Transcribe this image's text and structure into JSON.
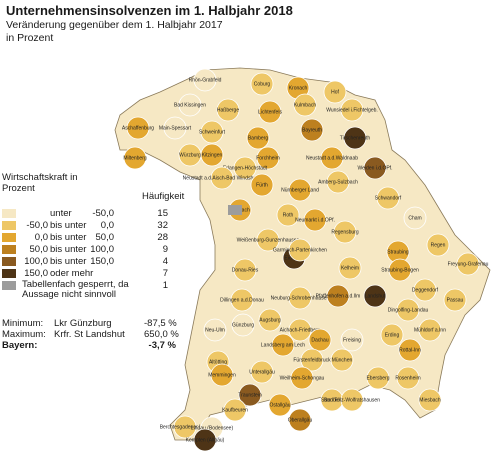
{
  "title": "Unternehmensinsolvenzen im 1. Halbjahr 2018",
  "subtitle": "Veränderung gegenüber dem 1. Halbjahr 2017",
  "unit": "in Prozent",
  "legend": {
    "title": "Wirtschaftskraft in Prozent",
    "count_title": "Häufigkeit",
    "items": [
      {
        "from": "",
        "mid": "unter",
        "to": "-50,0",
        "count": "15",
        "color": "#f6e8c4"
      },
      {
        "from": "-50,0",
        "mid": "bis unter",
        "to": "0,0",
        "count": "32",
        "color": "#eec766"
      },
      {
        "from": "0,0",
        "mid": "bis unter",
        "to": "50,0",
        "count": "28",
        "color": "#e3a730"
      },
      {
        "from": "50,0",
        "mid": "bis unter",
        "to": "100,0",
        "count": "9",
        "color": "#bd801f"
      },
      {
        "from": "100,0",
        "mid": "bis unter",
        "to": "150,0",
        "count": "4",
        "color": "#8a5a20"
      },
      {
        "from": "150,0",
        "mid": "oder mehr",
        "to": "",
        "count": "7",
        "color": "#4e3416"
      }
    ],
    "note": {
      "text": "Tabellenfach gesperrt, da Aussage nicht sinnvoll",
      "count": "1",
      "color": "#9c9c9c"
    }
  },
  "stats": [
    {
      "key": "Minimum:",
      "place": "Lkr Günzburg",
      "value": "-87,5 %",
      "bold": false
    },
    {
      "key": "Maximum:",
      "place": "Krfr. St Landshut",
      "value": "650,0 %",
      "bold": false
    },
    {
      "key": "Bayern:",
      "place": "",
      "value": "-3,7 %",
      "bold": true
    }
  ],
  "regions": [
    {
      "name": "Rhön-Grabfeld",
      "cls": 0
    },
    {
      "name": "Coburg",
      "cls": 1
    },
    {
      "name": "Kronach",
      "cls": 2
    },
    {
      "name": "Hof",
      "cls": 1
    },
    {
      "name": "Bad Kissingen",
      "cls": 0
    },
    {
      "name": "Haßberge",
      "cls": 1
    },
    {
      "name": "Lichtenfels",
      "cls": 2
    },
    {
      "name": "Kulmbach",
      "cls": 1
    },
    {
      "name": "Wunsiedel i.Fichtelgeb.",
      "cls": 1
    },
    {
      "name": "Aschaffenburg",
      "cls": 2
    },
    {
      "name": "Main-Spessart",
      "cls": 0
    },
    {
      "name": "Schweinfurt",
      "cls": 1
    },
    {
      "name": "Bamberg",
      "cls": 2
    },
    {
      "name": "Bayreuth",
      "cls": 3
    },
    {
      "name": "Tirschenreuth",
      "cls": 5
    },
    {
      "name": "Miltenberg",
      "cls": 2
    },
    {
      "name": "Würzburg",
      "cls": 1
    },
    {
      "name": "Kitzingen",
      "cls": 2
    },
    {
      "name": "Forchheim",
      "cls": 2
    },
    {
      "name": "Neustadt a.d.Waldnaab",
      "cls": 2
    },
    {
      "name": "Weiden i.d.OPf.",
      "cls": 4
    },
    {
      "name": "Erlangen-Höchstadt",
      "cls": 1
    },
    {
      "name": "Neustadt a.d.Aisch-Bad Windsheim",
      "cls": 1
    },
    {
      "name": "Fürth",
      "cls": 2
    },
    {
      "name": "Nürnberger Land",
      "cls": 2
    },
    {
      "name": "Amberg-Sulzbach",
      "cls": 1
    },
    {
      "name": "Schwandorf",
      "cls": 1
    },
    {
      "name": "Cham",
      "cls": 0
    },
    {
      "name": "Ansbach",
      "cls": 2
    },
    {
      "name": "Roth",
      "cls": 1
    },
    {
      "name": "Neumarkt i.d.OPf.",
      "cls": 2
    },
    {
      "name": "Weißenburg-Gunzenhausen",
      "cls": 1
    },
    {
      "name": "Regensburg",
      "cls": 1
    },
    {
      "name": "Straubing",
      "cls": 2
    },
    {
      "name": "Regen",
      "cls": 1
    },
    {
      "name": "Freyung-Grafenau",
      "cls": 1
    },
    {
      "name": "Donau-Ries",
      "cls": 1
    },
    {
      "name": "Eichstätt",
      "cls": 5
    },
    {
      "name": "Kelheim",
      "cls": 1
    },
    {
      "name": "Straubing-Bogen",
      "cls": 2
    },
    {
      "name": "Deggendorf",
      "cls": 1
    },
    {
      "name": "Dillingen a.d.Donau",
      "cls": 1
    },
    {
      "name": "Neuburg-Schrobenhausen",
      "cls": 1
    },
    {
      "name": "Pfaffenhofen a.d.Ilm",
      "cls": 3
    },
    {
      "name": "Landshut",
      "cls": 5
    },
    {
      "name": "Dingolfing-Landau",
      "cls": 1
    },
    {
      "name": "Passau",
      "cls": 1
    },
    {
      "name": "Neu-Ulm",
      "cls": 0
    },
    {
      "name": "Günzburg",
      "cls": 0
    },
    {
      "name": "Augsburg",
      "cls": 1
    },
    {
      "name": "Aichach-Friedberg",
      "cls": 1
    },
    {
      "name": "Dachau",
      "cls": 2
    },
    {
      "name": "Freising",
      "cls": 0
    },
    {
      "name": "Erding",
      "cls": 1
    },
    {
      "name": "Mühldorf a.Inn",
      "cls": 1
    },
    {
      "name": "Rottal-Inn",
      "cls": 2
    },
    {
      "name": "Altötting",
      "cls": 1
    },
    {
      "name": "Memmingen",
      "cls": 2
    },
    {
      "name": "Unterallgäu",
      "cls": 1
    },
    {
      "name": "Landsberg am Lech",
      "cls": 2
    },
    {
      "name": "Fürstenfeldbruck",
      "cls": 1
    },
    {
      "name": "München",
      "cls": 1
    },
    {
      "name": "Ebersberg",
      "cls": 1
    },
    {
      "name": "Rosenheim",
      "cls": 1
    },
    {
      "name": "Traunstein",
      "cls": 4
    },
    {
      "name": "Kaufbeuren",
      "cls": 1
    },
    {
      "name": "Ostallgäu",
      "cls": 2
    },
    {
      "name": "Weilheim-Schongau",
      "cls": 2
    },
    {
      "name": "Starnberg",
      "cls": 1
    },
    {
      "name": "Bad Tölz-Wolfratshausen",
      "cls": 1
    },
    {
      "name": "Miesbach",
      "cls": 1
    },
    {
      "name": "Berchtesgadener Land",
      "cls": 1
    },
    {
      "name": "Lindau (Bodensee)",
      "cls": 0
    },
    {
      "name": "Kempten (Allgäu)",
      "cls": 5
    },
    {
      "name": "Oberallgäu",
      "cls": 3
    },
    {
      "name": "Garmisch-Partenkirchen",
      "cls": 1
    }
  ]
}
